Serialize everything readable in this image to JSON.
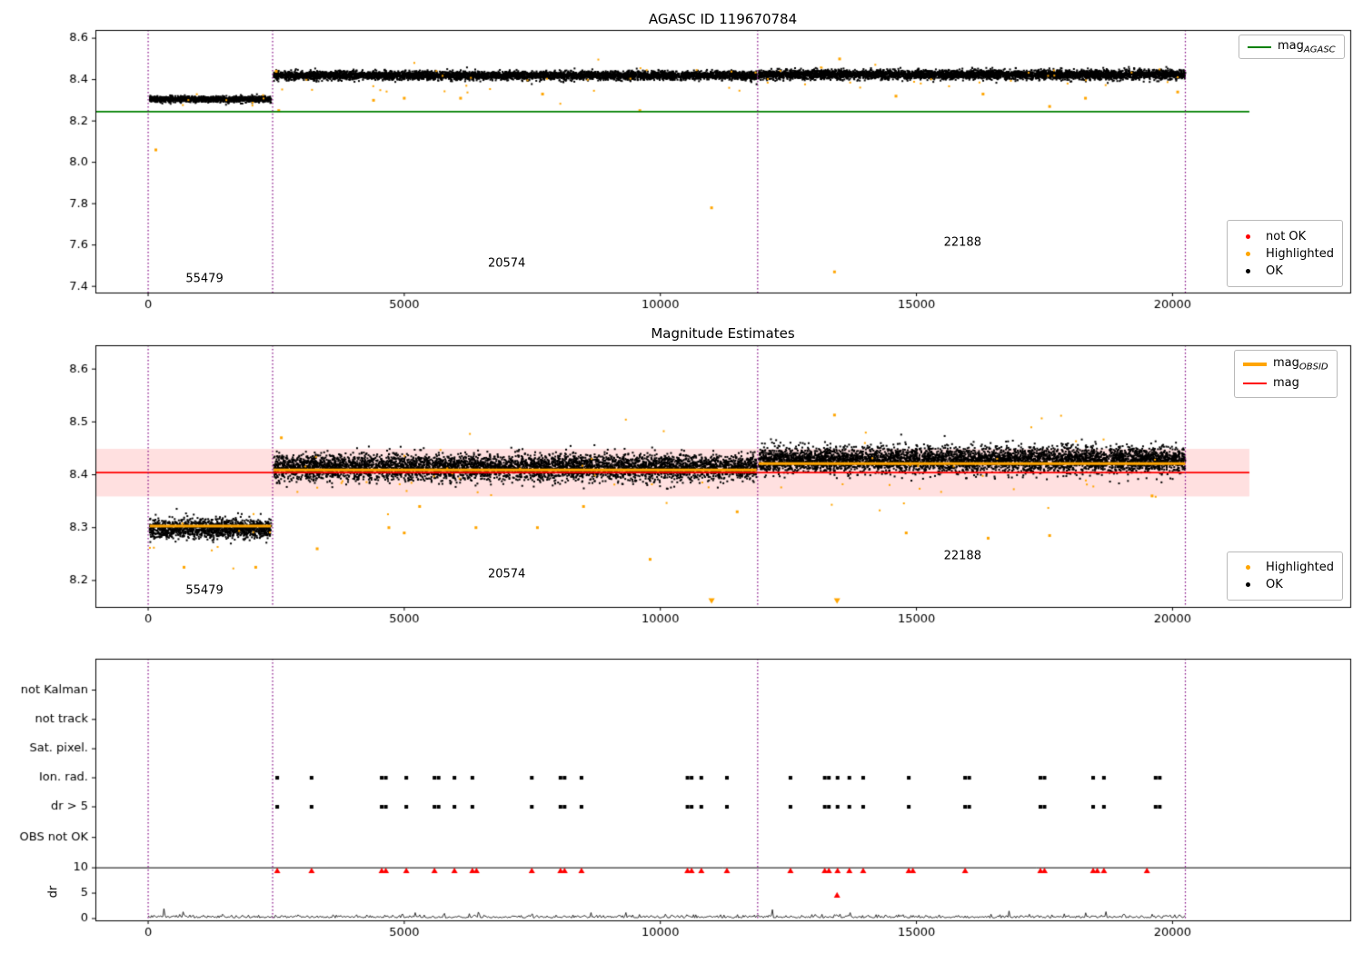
{
  "figure": {
    "bg": "#ffffff"
  },
  "chart_data": [
    {
      "type": "scatter",
      "title": "AGASC ID 119670784",
      "xlim": [
        -1030,
        23470
      ],
      "ylim": [
        7.37,
        8.64
      ],
      "xticks": [
        0,
        5000,
        10000,
        15000,
        20000
      ],
      "yticks": [
        "7.4",
        "7.6",
        "7.8",
        "8.0",
        "8.2",
        "8.4",
        "8.6"
      ],
      "hline": {
        "value": 8.245,
        "x0": -1030,
        "x1": 21500,
        "color": "#008000"
      },
      "vlines": {
        "x": [
          0,
          2430,
          11900,
          20250
        ],
        "color": "#800080"
      },
      "bands": [
        {
          "x0": 30,
          "x1": 2400,
          "mean": 8.305,
          "sd": 0.007,
          "n": 1300,
          "color": "#000000",
          "seed": 11
        },
        {
          "x0": 2450,
          "x1": 11880,
          "mean": 8.42,
          "sd": 0.01,
          "n": 5200,
          "color": "#000000",
          "seed": 12
        },
        {
          "x0": 11920,
          "x1": 20250,
          "mean": 8.424,
          "sd": 0.011,
          "n": 4800,
          "color": "#000000",
          "seed": 13
        },
        {
          "x0": 2450,
          "x1": 11880,
          "mean": 8.4,
          "sd": 0.035,
          "n": 28,
          "color": "#ffa500",
          "seed": 14
        },
        {
          "x0": 11920,
          "x1": 20250,
          "mean": 8.4,
          "sd": 0.035,
          "n": 26,
          "color": "#ffa500",
          "seed": 15
        },
        {
          "x0": 30,
          "x1": 2400,
          "mean": 8.3,
          "sd": 0.02,
          "n": 8,
          "color": "#ffa500",
          "seed": 16
        }
      ],
      "outliers": {
        "color": "#ffa500",
        "points": [
          [
            150,
            8.06
          ],
          [
            2500,
            8.44
          ],
          [
            2550,
            8.25
          ],
          [
            4400,
            8.3
          ],
          [
            5000,
            8.31
          ],
          [
            6100,
            8.31
          ],
          [
            7700,
            8.33
          ],
          [
            9600,
            8.25
          ],
          [
            11000,
            7.78
          ],
          [
            13400,
            7.47
          ],
          [
            13500,
            8.5
          ],
          [
            14600,
            8.32
          ],
          [
            16300,
            8.33
          ],
          [
            17600,
            8.27
          ],
          [
            18300,
            8.31
          ],
          [
            20100,
            8.34
          ]
        ]
      },
      "annotations": [
        {
          "text": "55479",
          "x": 1100,
          "y": 7.435
        },
        {
          "text": "20574",
          "x": 7000,
          "y": 7.51
        },
        {
          "text": "22188",
          "x": 15900,
          "y": 7.61
        }
      ],
      "legend_line": [
        {
          "label_main": "mag",
          "label_sub": "AGASC",
          "color": "#008000"
        }
      ],
      "legend_markers": [
        {
          "label": "not OK",
          "color": "#ff0000"
        },
        {
          "label": "Highlighted",
          "color": "#ffa500"
        },
        {
          "label": "OK",
          "color": "#000000"
        }
      ]
    },
    {
      "type": "scatter",
      "title": "Magnitude Estimates",
      "xlim": [
        -1030,
        23470
      ],
      "ylim": [
        8.15,
        8.645
      ],
      "xticks": [
        0,
        5000,
        10000,
        15000,
        20000
      ],
      "yticks": [
        "8.2",
        "8.3",
        "8.4",
        "8.5",
        "8.6"
      ],
      "hline": {
        "value": 8.404,
        "x0": -1030,
        "x1": 21500,
        "color": "#ff0000"
      },
      "hspan": {
        "y0": 8.359,
        "y1": 8.449,
        "x0": -1030,
        "x1": 21500,
        "color": "rgba(255,0,0,0.12)"
      },
      "vlines": {
        "x": [
          0,
          2430,
          11900,
          20250
        ],
        "color": "#800080"
      },
      "obsid_lines": {
        "color": "#ffa500",
        "segments": [
          {
            "obsid": "55479",
            "x0": 30,
            "x1": 2400,
            "mag": 8.303
          },
          {
            "obsid": "20574",
            "x0": 2450,
            "x1": 11880,
            "mag": 8.409
          },
          {
            "obsid": "22188",
            "x0": 11920,
            "x1": 20250,
            "mag": 8.421
          }
        ]
      },
      "bands": [
        {
          "x0": 30,
          "x1": 2400,
          "mean": 8.298,
          "sd": 0.009,
          "n": 1300,
          "color": "#000000",
          "seed": 21
        },
        {
          "x0": 2450,
          "x1": 11880,
          "mean": 8.414,
          "sd": 0.012,
          "n": 5200,
          "color": "#000000",
          "seed": 22
        },
        {
          "x0": 11920,
          "x1": 20250,
          "mean": 8.428,
          "sd": 0.012,
          "n": 4800,
          "color": "#000000",
          "seed": 23
        },
        {
          "x0": 2450,
          "x1": 11880,
          "mean": 8.4,
          "sd": 0.04,
          "n": 32,
          "color": "#ffa500",
          "seed": 24
        },
        {
          "x0": 11920,
          "x1": 20250,
          "mean": 8.4,
          "sd": 0.05,
          "n": 28,
          "color": "#ffa500",
          "seed": 25
        },
        {
          "x0": 30,
          "x1": 2400,
          "mean": 8.28,
          "sd": 0.03,
          "n": 10,
          "color": "#ffa500",
          "seed": 26
        }
      ],
      "outliers": {
        "color": "#ffa500",
        "points": [
          [
            700,
            8.225
          ],
          [
            2100,
            8.225
          ],
          [
            2600,
            8.47
          ],
          [
            3300,
            8.26
          ],
          [
            4700,
            8.3
          ],
          [
            5000,
            8.29
          ],
          [
            5300,
            8.34
          ],
          [
            6400,
            8.3
          ],
          [
            7600,
            8.3
          ],
          [
            8500,
            8.34
          ],
          [
            9800,
            8.24
          ],
          [
            11500,
            8.33
          ],
          [
            13400,
            8.513
          ],
          [
            14800,
            8.29
          ],
          [
            16400,
            8.28
          ],
          [
            17600,
            8.285
          ],
          [
            19600,
            8.36
          ]
        ]
      },
      "tri_down": {
        "color": "#ffa500",
        "points": [
          [
            11000,
            8.162
          ],
          [
            13450,
            8.162
          ]
        ]
      },
      "annotations": [
        {
          "text": "55479",
          "x": 1100,
          "y": 8.181
        },
        {
          "text": "20574",
          "x": 7000,
          "y": 8.212
        },
        {
          "text": "22188",
          "x": 15900,
          "y": 8.246
        }
      ],
      "legend_line": [
        {
          "label_main": "mag",
          "label_sub": "OBSID",
          "color": "#ffa500",
          "thick": true
        },
        {
          "label_main": "mag",
          "label_sub": "",
          "color": "#ff0000"
        }
      ],
      "legend_markers": [
        {
          "label": "Highlighted",
          "color": "#ffa500"
        },
        {
          "label": "OK",
          "color": "#000000"
        }
      ]
    },
    {
      "type": "flags",
      "xlim": [
        -1030,
        23470
      ],
      "xticks": [
        0,
        5000,
        10000,
        15000,
        20000
      ],
      "ylabel": "dr",
      "categories": [
        {
          "label": "not Kalman",
          "f": 0.12
        },
        {
          "label": "not track",
          "f": 0.232
        },
        {
          "label": "Sat. pixel.",
          "f": 0.344
        },
        {
          "label": "Ion. rad.",
          "f": 0.455
        },
        {
          "label": "dr > 5",
          "f": 0.566
        },
        {
          "label": "OBS not OK",
          "f": 0.683
        }
      ],
      "flag_rows": [
        3,
        4
      ],
      "flag_color": "#000000",
      "dr_axis": {
        "f0": 0.993,
        "f10": 0.799,
        "ticks": [
          10,
          5,
          0
        ]
      },
      "hline_dr": 10,
      "vlines": {
        "x": [
          0,
          2430,
          11900,
          20250
        ],
        "color": "#800080"
      },
      "flags_x": [
        2520,
        3190,
        4560,
        4640,
        5040,
        5590,
        5670,
        5980,
        6330,
        7490,
        8050,
        8130,
        8460,
        10530,
        10610,
        10800,
        11300,
        12540,
        13210,
        13290,
        13460,
        13690,
        13960,
        14850,
        15950,
        16030,
        17420,
        17500,
        18450,
        18660,
        19670,
        19750
      ],
      "red_x": [
        2520,
        3190,
        4560,
        4640,
        5040,
        5590,
        5980,
        6330,
        6410,
        7490,
        8050,
        8130,
        8460,
        10530,
        10610,
        10800,
        11300,
        12540,
        13210,
        13290,
        13460,
        13690,
        13960,
        14850,
        14930,
        15950,
        17420,
        17500,
        18450,
        18530,
        18660,
        19500
      ],
      "red_color": "#ff0000",
      "red_points": [
        [
          13450,
          4.6
        ]
      ],
      "dr_trace": {
        "x0": 0,
        "x1": 20260,
        "step": 22,
        "base": 0.12,
        "spread": 0.3,
        "spike_p": 0.012,
        "spike": 1.5,
        "seed": 77,
        "color": "#000000"
      }
    }
  ]
}
